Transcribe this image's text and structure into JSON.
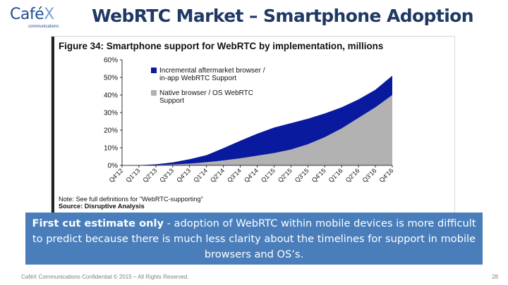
{
  "logo": {
    "word_a": "Café",
    "word_b": "X",
    "sub": "communications"
  },
  "slide": {
    "title": "WebRTC Market – Smartphone Adoption"
  },
  "figure": {
    "title": "Figure 34: Smartphone support for WebRTC by implementation, millions",
    "note": "Note: See full definitions for \"WebRTC-supporting\"",
    "source": "Source: Disruptive Analysis"
  },
  "callout": {
    "bold": "First cut estimate only",
    "text": " - adoption of WebRTC within mobile devices is more difficult to predict because there is much less clarity about the timelines for support in mobile browsers and OS’s."
  },
  "footer": {
    "left": "CaféX Communications Confidential © 2015 – All Rights Reserved.",
    "page": "28"
  },
  "colors": {
    "incremental": "#0a1a9e",
    "native": "#b2b2b2",
    "callout": "#4a7ebb",
    "title": "#1f3864"
  },
  "chart_data": {
    "type": "area",
    "title": "Figure 34: Smartphone support for WebRTC by implementation, millions",
    "x": [
      "Q4'12",
      "Q1'13",
      "Q2'13",
      "Q3'13",
      "Q4'13",
      "Q1'14",
      "Q2'14",
      "Q3'14",
      "Q4'14",
      "Q1'15",
      "Q2'15",
      "Q3'15",
      "Q4'15",
      "Q1'16",
      "Q2'16",
      "Q3'16",
      "Q4'16"
    ],
    "ylim": [
      0,
      60
    ],
    "yticks": [
      "0%",
      "10%",
      "20%",
      "30%",
      "40%",
      "50%",
      "60%"
    ],
    "stacked": true,
    "series": [
      {
        "name": "Native browser / OS WebRTC Support",
        "color": "#b2b2b2",
        "values": [
          0,
          0,
          0.2,
          0.5,
          1,
          1.8,
          2.8,
          4,
          5.5,
          7,
          9,
          12,
          16,
          21,
          27,
          33,
          40
        ]
      },
      {
        "name": "Incremental aftermarket browser / in-app WebRTC Support",
        "color": "#0a1a9e",
        "values": [
          0,
          0.1,
          0.4,
          1.2,
          2.5,
          4,
          7,
          10,
          12.5,
          14.5,
          15,
          14.5,
          13.5,
          12,
          10.5,
          10,
          11
        ]
      }
    ],
    "legend": [
      {
        "lines": [
          "Incremental aftermarket browser /",
          "in-app WebRTC Support"
        ],
        "color": "#0a1a9e"
      },
      {
        "lines": [
          "Native browser / OS WebRTC",
          "Support"
        ],
        "color": "#b2b2b2"
      }
    ],
    "legend_position": "top-left inside plot",
    "grid": false
  }
}
